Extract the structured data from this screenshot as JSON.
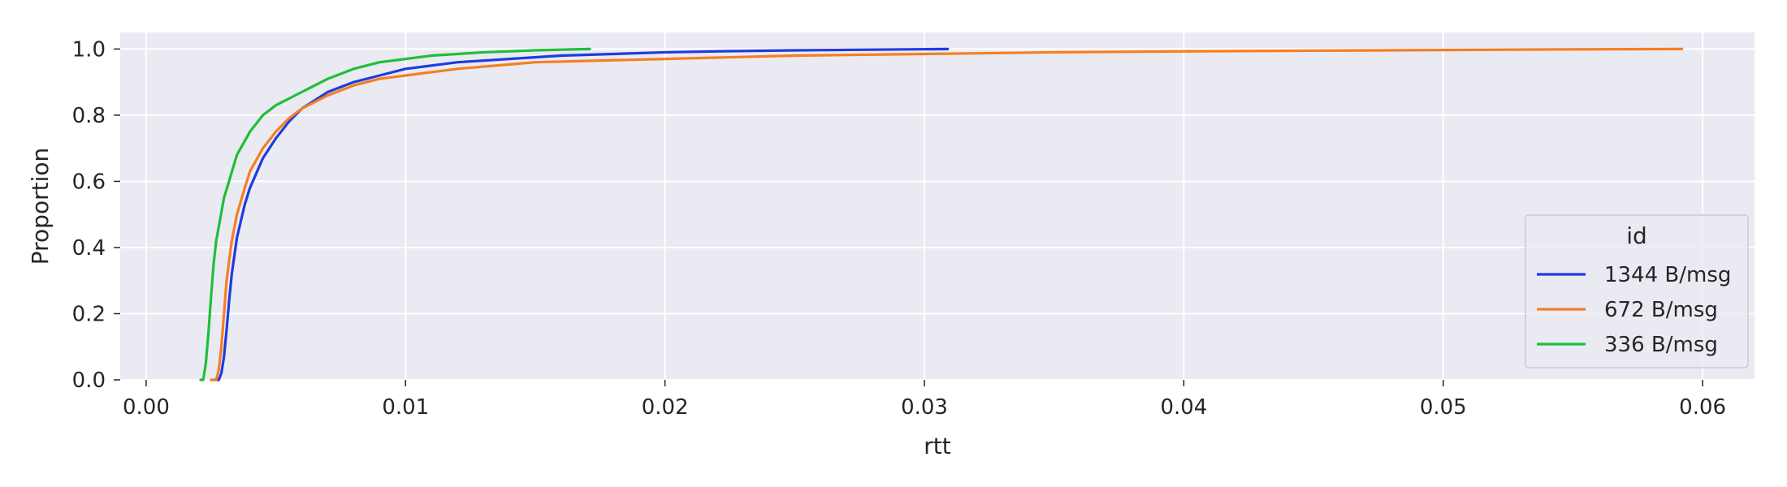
{
  "chart_data": {
    "type": "line",
    "xlabel": "rtt",
    "ylabel": "Proportion",
    "xlim": [
      -0.001,
      0.062
    ],
    "ylim": [
      0.0,
      1.05
    ],
    "x_ticks": [
      "0.00",
      "0.01",
      "0.02",
      "0.03",
      "0.04",
      "0.05",
      "0.06"
    ],
    "y_ticks": [
      "0.0",
      "0.2",
      "0.4",
      "0.6",
      "0.8",
      "1.0"
    ],
    "grid": true,
    "legend": {
      "title": "id",
      "placement": "lower-right"
    },
    "series": [
      {
        "name": "1344 B/msg",
        "color": "#1f3be0",
        "x": [
          0.0026,
          0.0028,
          0.0029,
          0.003,
          0.0031,
          0.0032,
          0.0033,
          0.0035,
          0.0038,
          0.004,
          0.0045,
          0.005,
          0.0055,
          0.006,
          0.007,
          0.008,
          0.009,
          0.01,
          0.012,
          0.014,
          0.016,
          0.018,
          0.02,
          0.022,
          0.025,
          0.028,
          0.0309
        ],
        "y": [
          0.0,
          0.0,
          0.02,
          0.07,
          0.15,
          0.24,
          0.32,
          0.43,
          0.53,
          0.58,
          0.67,
          0.73,
          0.78,
          0.82,
          0.87,
          0.9,
          0.92,
          0.94,
          0.96,
          0.97,
          0.98,
          0.985,
          0.99,
          0.993,
          0.996,
          0.998,
          1.0
        ]
      },
      {
        "name": "672 B/msg",
        "color": "#f57f20",
        "x": [
          0.0025,
          0.0027,
          0.0028,
          0.0029,
          0.003,
          0.0031,
          0.0033,
          0.0035,
          0.0038,
          0.004,
          0.0045,
          0.005,
          0.0055,
          0.006,
          0.007,
          0.008,
          0.009,
          0.01,
          0.012,
          0.015,
          0.02,
          0.025,
          0.03,
          0.035,
          0.04,
          0.045,
          0.05,
          0.055,
          0.0592
        ],
        "y": [
          0.0,
          0.0,
          0.03,
          0.1,
          0.2,
          0.3,
          0.42,
          0.5,
          0.58,
          0.63,
          0.7,
          0.75,
          0.79,
          0.82,
          0.86,
          0.89,
          0.91,
          0.92,
          0.94,
          0.96,
          0.97,
          0.98,
          0.985,
          0.99,
          0.993,
          0.995,
          0.997,
          0.999,
          1.0
        ]
      },
      {
        "name": "336 B/msg",
        "color": "#1fbf39",
        "x": [
          0.0021,
          0.0022,
          0.0023,
          0.0024,
          0.0025,
          0.0026,
          0.0027,
          0.003,
          0.0035,
          0.004,
          0.0045,
          0.005,
          0.006,
          0.007,
          0.008,
          0.009,
          0.01,
          0.011,
          0.012,
          0.013,
          0.014,
          0.015,
          0.016,
          0.0171
        ],
        "y": [
          0.0,
          0.0,
          0.05,
          0.14,
          0.25,
          0.35,
          0.42,
          0.55,
          0.68,
          0.75,
          0.8,
          0.83,
          0.87,
          0.91,
          0.94,
          0.96,
          0.97,
          0.98,
          0.985,
          0.99,
          0.993,
          0.996,
          0.998,
          1.0
        ]
      }
    ]
  }
}
